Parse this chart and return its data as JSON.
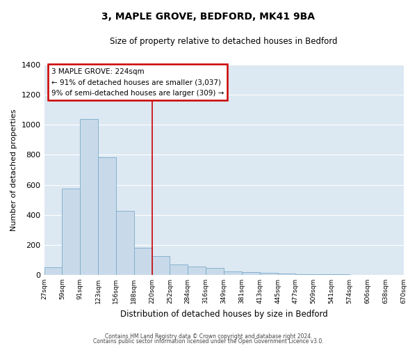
{
  "title": "3, MAPLE GROVE, BEDFORD, MK41 9BA",
  "subtitle": "Size of property relative to detached houses in Bedford",
  "xlabel": "Distribution of detached houses by size in Bedford",
  "ylabel": "Number of detached properties",
  "bar_color": "#c8daea",
  "bar_edge_color": "#7aaac8",
  "fig_bg_color": "#ffffff",
  "ax_bg_color": "#dce8f2",
  "grid_color": "#ffffff",
  "bin_labels": [
    "27sqm",
    "59sqm",
    "91sqm",
    "123sqm",
    "156sqm",
    "188sqm",
    "220sqm",
    "252sqm",
    "284sqm",
    "316sqm",
    "349sqm",
    "381sqm",
    "413sqm",
    "445sqm",
    "477sqm",
    "509sqm",
    "541sqm",
    "574sqm",
    "606sqm",
    "638sqm",
    "670sqm"
  ],
  "counts": [
    50,
    575,
    1040,
    785,
    425,
    182,
    127,
    68,
    55,
    47,
    25,
    20,
    12,
    8,
    5,
    3,
    2,
    1,
    0,
    0
  ],
  "vline_idx": 6,
  "vline_color": "#cc0000",
  "annotation_title": "3 MAPLE GROVE: 224sqm",
  "annotation_line1": "← 91% of detached houses are smaller (3,037)",
  "annotation_line2": "9% of semi-detached houses are larger (309) →",
  "annotation_box_color": "#cc0000",
  "ylim": [
    0,
    1400
  ],
  "yticks": [
    0,
    200,
    400,
    600,
    800,
    1000,
    1200,
    1400
  ],
  "footer1": "Contains HM Land Registry data © Crown copyright and database right 2024.",
  "footer2": "Contains public sector information licensed under the Open Government Licence v3.0."
}
